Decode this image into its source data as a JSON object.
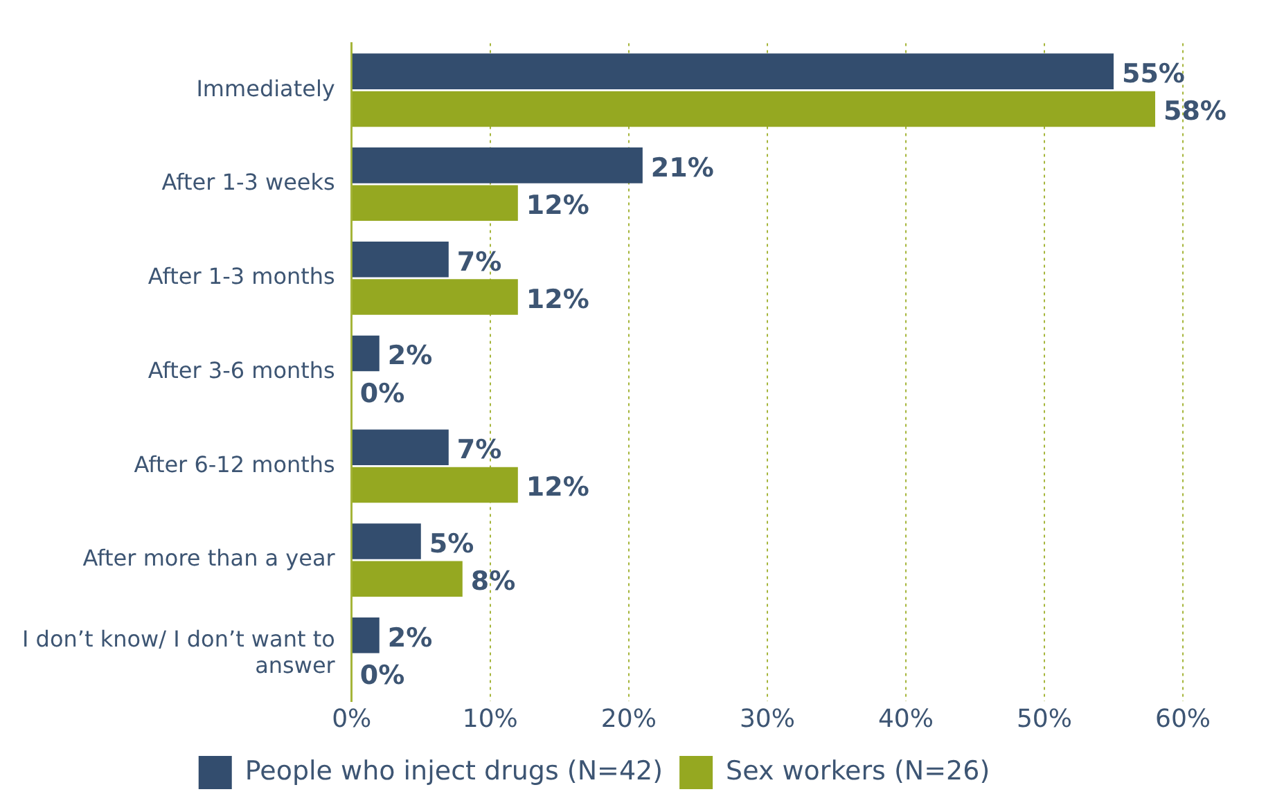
{
  "chart_data": {
    "type": "bar",
    "orientation": "horizontal",
    "categories": [
      "Immediately",
      "After 1-3 weeks",
      "After 1-3 months",
      "After 3-6 months",
      "After 6-12 months",
      "After more than a year",
      "I don’t know/ I don’t want to answer"
    ],
    "series": [
      {
        "name": "People who inject drugs (N=42)",
        "color": "#334d6e",
        "values": [
          55,
          21,
          7,
          2,
          7,
          5,
          2
        ],
        "value_labels": [
          "55%",
          "21%",
          "7%",
          "2%",
          "7%",
          "5%",
          "2%"
        ]
      },
      {
        "name": "Sex workers (N=26)",
        "color": "#95a821",
        "values": [
          58,
          12,
          12,
          0,
          12,
          8,
          0
        ],
        "value_labels": [
          "58%",
          "12%",
          "12%",
          "0%",
          "12%",
          "8%",
          "0%"
        ]
      }
    ],
    "xlim": [
      0,
      60
    ],
    "xticks": [
      {
        "value": 0,
        "label": "0%"
      },
      {
        "value": 10,
        "label": "10%"
      },
      {
        "value": 20,
        "label": "20%"
      },
      {
        "value": 30,
        "label": "30%"
      },
      {
        "value": 40,
        "label": "40%"
      },
      {
        "value": 50,
        "label": "50%"
      },
      {
        "value": 60,
        "label": "60%"
      }
    ],
    "grid": "x",
    "legend": "bottom"
  }
}
